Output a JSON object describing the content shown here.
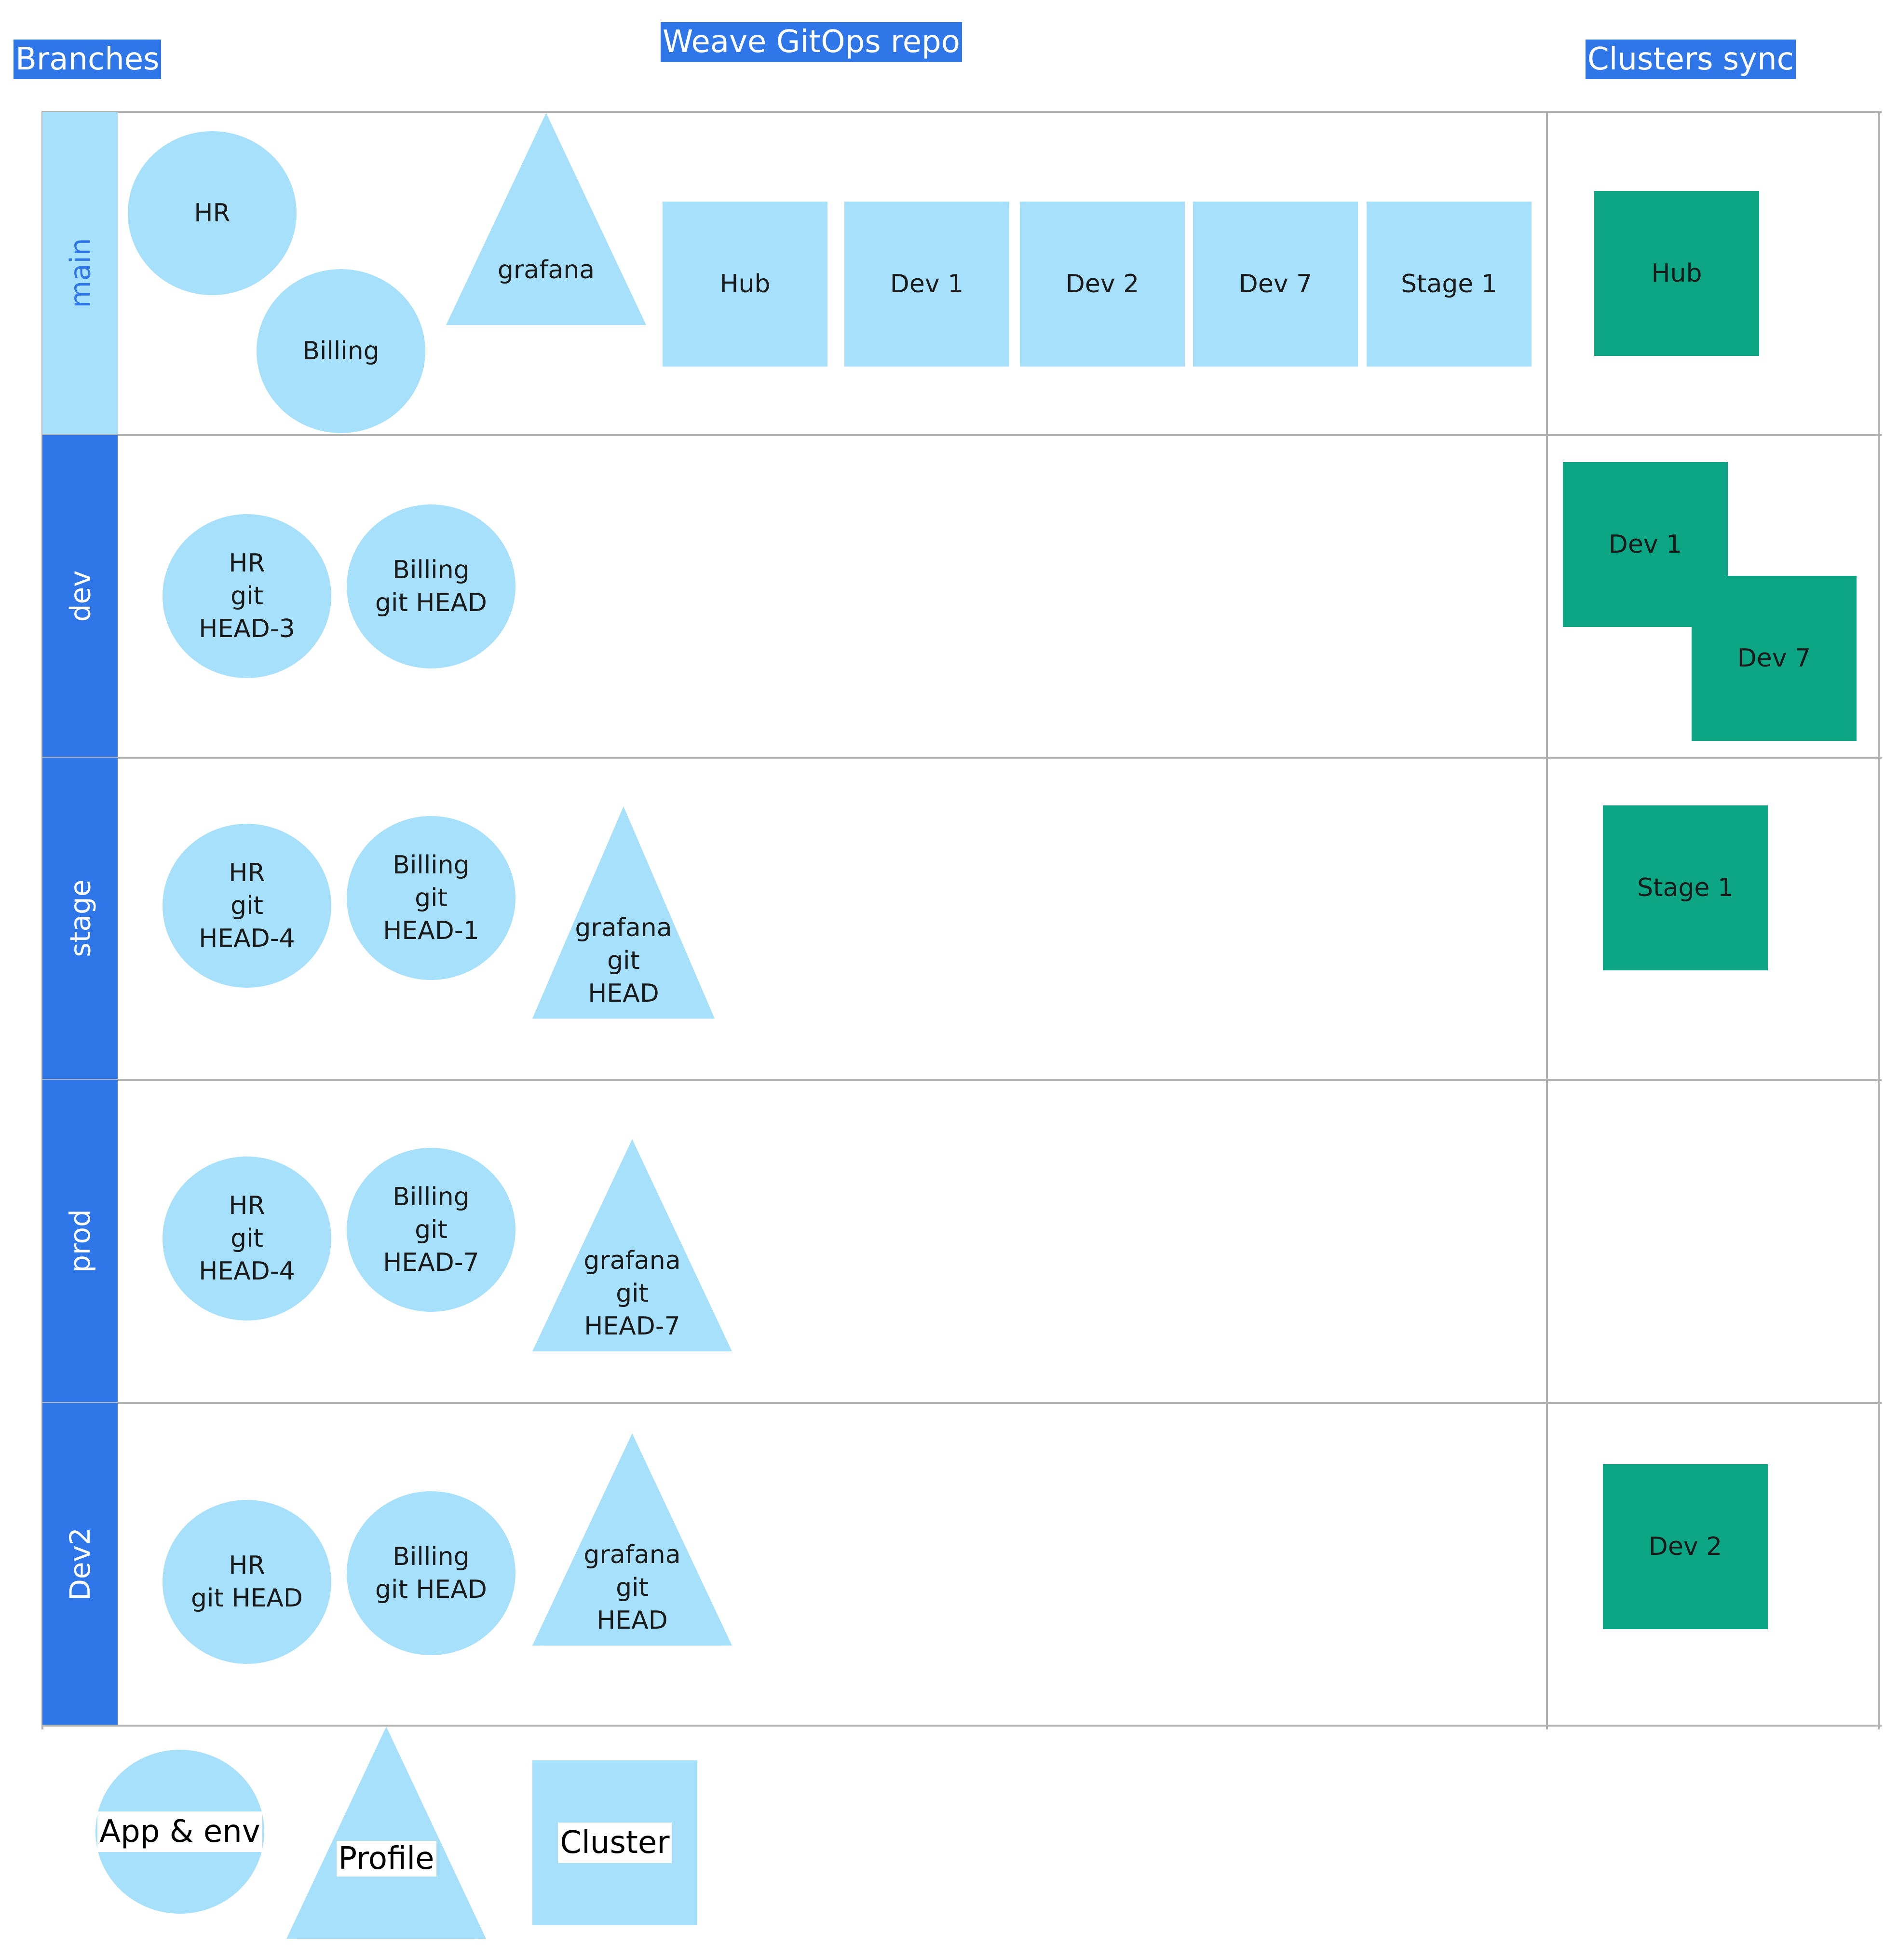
{
  "headers": {
    "branches": "Branches",
    "repo": "Weave GitOps repo",
    "clusters_sync": "Clusters sync"
  },
  "lanes": [
    {
      "label": "main"
    },
    {
      "label": "dev"
    },
    {
      "label": "stage"
    },
    {
      "label": "prod"
    },
    {
      "label": "Dev2"
    }
  ],
  "main": {
    "apps": [
      "HR",
      "Billing"
    ],
    "profile": "grafana",
    "clusters": [
      "Hub",
      "Dev 1",
      "Dev 2",
      "Dev 7",
      "Stage 1"
    ],
    "sync": [
      "Hub"
    ]
  },
  "dev": {
    "apps": [
      "HR\ngit\nHEAD-3",
      "Billing\ngit HEAD"
    ],
    "sync": [
      "Dev 1",
      "Dev 7"
    ]
  },
  "stage": {
    "apps": [
      "HR\ngit\nHEAD-4",
      "Billing\ngit\nHEAD-1"
    ],
    "profile": "grafana\ngit\nHEAD",
    "sync": [
      "Stage 1"
    ]
  },
  "prod": {
    "apps": [
      "HR\ngit\nHEAD-4",
      "Billing\ngit\nHEAD-7"
    ],
    "profile": "grafana\ngit\nHEAD-7"
  },
  "dev2": {
    "apps": [
      "HR\ngit HEAD",
      "Billing\ngit HEAD"
    ],
    "profile": "grafana\ngit\nHEAD",
    "sync": [
      "Dev 2"
    ]
  },
  "legend": {
    "app_env": "App & env",
    "profile": "Profile",
    "cluster": "Cluster"
  },
  "colors": {
    "accent_blue": "#2f76e8",
    "light_blue": "#a6e0fb",
    "cluster_green": "#0ca684",
    "grid": "#b3b3b3"
  }
}
